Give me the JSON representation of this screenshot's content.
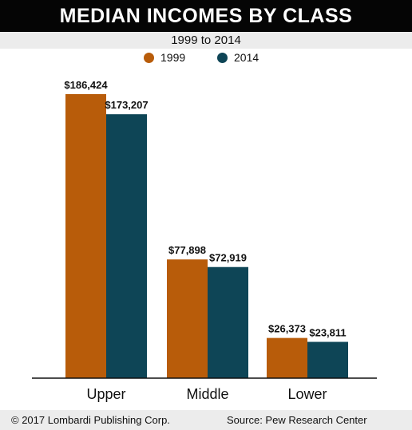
{
  "title": "MEDIAN INCOMES BY CLASS",
  "subtitle": "1999 to 2014",
  "footer": {
    "copyright": "© 2017 Lombardi Publishing Corp.",
    "source": "Source: Pew Research Center"
  },
  "chart_data": {
    "type": "bar",
    "title": "MEDIAN INCOMES BY CLASS",
    "subtitle": "1999 to 2014",
    "categories": [
      "Upper",
      "Middle",
      "Lower"
    ],
    "series": [
      {
        "name": "1999",
        "color": "#b85c0a",
        "values": [
          186424,
          77898,
          26373
        ],
        "labels": [
          "$186,424",
          "$77,898",
          "$26,373"
        ]
      },
      {
        "name": "2014",
        "color": "#0e4556",
        "values": [
          173207,
          72919,
          23811
        ],
        "labels": [
          "$173,207",
          "$72,919",
          "$23,811"
        ]
      }
    ],
    "xlabel": "",
    "ylabel": "",
    "ylim": [
      0,
      200000
    ],
    "grid": false,
    "legend": "top-center"
  }
}
